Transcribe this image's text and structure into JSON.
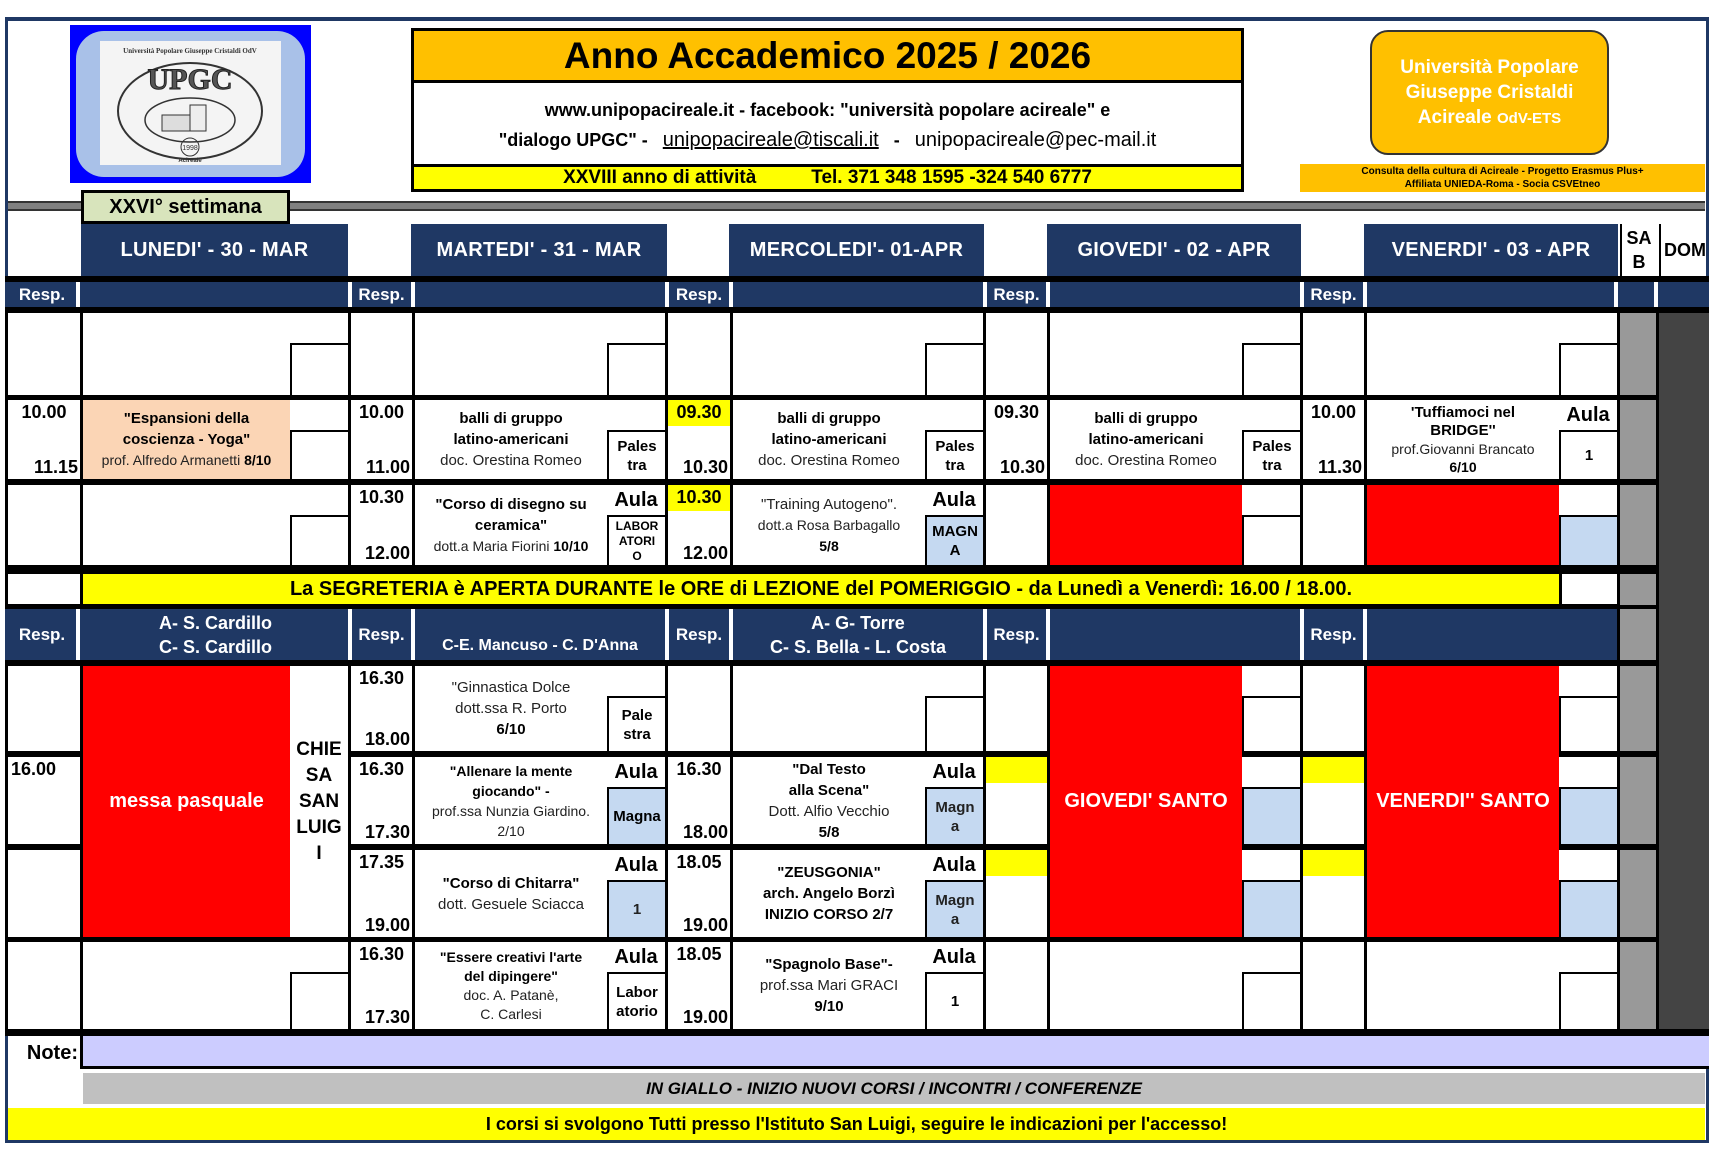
{
  "logo": {
    "text_top": "Università Popolare Giuseppe Cristaldi OdV",
    "text_main": "UPGC",
    "year": "1998",
    "text_bottom": "Acireale",
    "colors": {
      "frame": "#0000ff",
      "inner": "#a9c1e8"
    }
  },
  "header": {
    "title": "Anno Accademico 2025 / 2026",
    "line1": "www.unipopacireale.it - facebook: \"università popolare acireale\" e",
    "line2_prefix": "\"dialogo UPGC\" -",
    "email1": "unipopacireale@tiscali.it",
    "sep": "-",
    "email2": "unipopacireale@pec-mail.it",
    "anno": "XXVIII anno di attività",
    "tel": "Tel. 371 348 1595 -324 540 6777",
    "org": [
      "Università Popolare",
      "Giuseppe Cristaldi"
    ],
    "org3": "Acireale",
    "org3_suffix": "OdV-ETS",
    "affil1": "Consulta della cultura di Acireale  - Progetto Erasmus Plus+",
    "affil2": "Affiliata UNIEDA-Roma   -   Socia CSVEtneo",
    "week": "XXVI° settimana"
  },
  "colors": {
    "navy": "#1f3864",
    "yellow": "#ffff00",
    "orange": "#ffc000",
    "red": "#ff0000",
    "room_blue": "#c5d9f1",
    "peach": "#fbd5b5",
    "note": "#ccccff"
  },
  "days": [
    "LUNEDI' - 30 - MAR",
    "MARTEDI' - 31 - MAR",
    "MERCOLEDI'- 01-APR",
    "GIOVEDI' - 02 - APR",
    "VENERDI' - 03 - APR"
  ],
  "sab": [
    "SA",
    "B"
  ],
  "dom": "DOM",
  "resp_label": "Resp.",
  "room": {
    "aula": "Aula",
    "palestra": [
      "Pales",
      "tra"
    ],
    "lab": [
      "LABOR",
      "ATORI",
      "O"
    ],
    "magna_caps": [
      "MAGN",
      "A"
    ],
    "one": "1",
    "pale_stra": [
      "Pale",
      "stra"
    ],
    "magna": "Magna",
    "magn_a": [
      "Magn",
      "a"
    ],
    "labor_atorio": [
      "Labor",
      "atorio"
    ]
  },
  "morning": {
    "mon_r2": {
      "start": "10.00",
      "end": "11.15",
      "title": [
        "\"Espansioni della",
        "coscienza - Yoga\""
      ],
      "teacher": "prof. Alfredo Armanetti",
      "lesson": "8/10"
    },
    "tue_r2": {
      "start": "10.00",
      "end": "11.00",
      "title": [
        "balli di gruppo",
        "latino-americani"
      ],
      "teacher": "doc. Orestina Romeo"
    },
    "wed_r2": {
      "start": "09.30",
      "end": "10.30",
      "title": [
        "balli di gruppo",
        "latino-americani"
      ],
      "teacher": "doc. Orestina Romeo"
    },
    "thu_r2": {
      "start": "09.30",
      "end": "10.30",
      "title": [
        "balli di gruppo",
        "latino-americani"
      ],
      "teacher": "doc. Orestina Romeo"
    },
    "fri_r2": {
      "start": "10.00",
      "end": "11.30",
      "title": [
        "'Tuffiamoci nel",
        "BRIDGE''"
      ],
      "teacher": "prof.Giovanni Brancato",
      "lesson": "6/10"
    },
    "tue_r3": {
      "start": "10.30",
      "end": "12.00",
      "title": [
        "\"Corso di disegno su",
        "ceramica\""
      ],
      "teacher": "dott.a Maria Fiorini",
      "lesson": "10/10"
    },
    "wed_r3": {
      "start": "10.30",
      "end": "12.00",
      "title": "\"Training Autogeno\".",
      "teacher": "dott.a Rosa Barbagallo",
      "lesson": "5/8"
    }
  },
  "segreteria": "La SEGRETERIA è APERTA DURANTE le ORE di LEZIONE del POMERIGGIO - da Lunedì a Venerdì: 16.00 / 18.00.",
  "afternoon_header": {
    "mon": [
      "A-  S. Cardillo",
      "C-   S. Cardillo"
    ],
    "tue": "C-E. Mancuso - C. D'Anna",
    "wed": [
      "A- G- Torre",
      "C-  S. Bella - L. Costa"
    ]
  },
  "afternoon": {
    "mon_event": "messa pasquale",
    "mon_place": [
      "CHIE",
      "SA",
      "SAN",
      "LUIG",
      "I"
    ],
    "mon_r5_start": "16.00",
    "tue_r4": {
      "start": "16.30",
      "end": "18.00",
      "title": [
        "\"Ginnastica Dolce",
        "dott.ssa R. Porto"
      ],
      "lesson": "6/10"
    },
    "tue_r5": {
      "start": "16.30",
      "end": "17.30",
      "title": [
        "\"Allenare la mente",
        "giocando\" -"
      ],
      "teacher": "prof.ssa Nunzia Giardino.",
      "lesson": "2/10"
    },
    "tue_r6": {
      "start": "17.35",
      "end": "19.00",
      "title": "\"Corso di Chitarra\"",
      "teacher": "dott. Gesuele Sciacca"
    },
    "tue_r7": {
      "start": "16.30",
      "end": "17.30",
      "title": [
        "\"Essere creativi l'arte",
        "del dipingere\""
      ],
      "teacher": [
        "doc. A. Patanè,",
        "C. Carlesi"
      ]
    },
    "wed_r5": {
      "start": "16.30",
      "end": "18.00",
      "title": [
        "\"Dal Testo",
        "alla Scena\""
      ],
      "teacher": "Dott. Alfio Vecchio",
      "lesson": "5/8"
    },
    "wed_r6": {
      "start": "18.05",
      "end": "19.00",
      "title": "\"ZEUSGONIA\"",
      "teacher": "arch. Angelo Borzì",
      "lesson": "INIZIO CORSO 2/7"
    },
    "wed_r7": {
      "start": "18.05",
      "end": "19.00",
      "title": "\"Spagnolo Base\"-",
      "teacher": "prof.ssa Mari GRACI",
      "lesson": "9/10"
    },
    "thu_event": "GIOVEDI' SANTO",
    "fri_event": "VENERDI'' SANTO"
  },
  "footer": {
    "note_label": "Note:",
    "note_value": "",
    "legend": "IN GIALLO - INIZIO NUOVI CORSI / INCONTRI / CONFERENZE",
    "info": "I corsi si svolgono Tutti  presso l'Istituto San Luigi, seguire le indicazioni per l'accesso!"
  }
}
